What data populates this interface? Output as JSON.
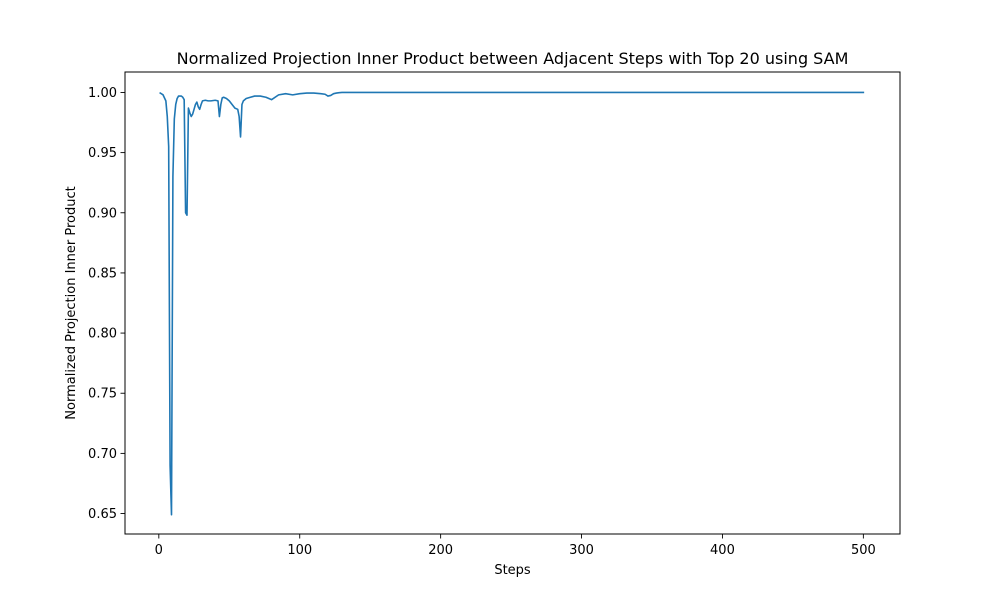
{
  "chart_data": {
    "type": "line",
    "title": "Normalized Projection Inner Product between Adjacent Steps with Top 20 using SAM",
    "xlabel": "Steps",
    "ylabel": "Normalized Projection Inner Product",
    "xlim": [
      -24,
      526
    ],
    "ylim": [
      0.633,
      1.017
    ],
    "xticks": [
      0,
      100,
      200,
      300,
      400,
      500
    ],
    "xtick_labels": [
      "0",
      "100",
      "200",
      "300",
      "400",
      "500"
    ],
    "yticks": [
      0.65,
      0.7,
      0.75,
      0.8,
      0.85,
      0.9,
      0.95,
      1.0
    ],
    "ytick_labels": [
      "0.65",
      "0.70",
      "0.75",
      "0.80",
      "0.85",
      "0.90",
      "0.95",
      "1.00"
    ],
    "grid": false,
    "series": [
      {
        "color": "#1f77b4",
        "x": [
          1,
          3,
          5,
          6,
          7,
          8,
          9,
          10,
          11,
          12,
          13,
          14,
          15,
          16,
          17,
          18,
          19,
          20,
          21,
          22,
          23,
          24,
          25,
          26,
          27,
          28,
          29,
          30,
          31,
          33,
          35,
          37,
          40,
          42,
          43,
          44,
          45,
          46,
          48,
          50,
          52,
          54,
          56,
          57,
          58,
          59,
          60,
          62,
          65,
          68,
          72,
          76,
          80,
          85,
          90,
          95,
          100,
          105,
          110,
          115,
          118,
          120,
          122,
          124,
          126,
          128,
          130,
          135,
          140,
          150,
          200,
          250,
          300,
          350,
          400,
          450,
          500
        ],
        "y": [
          0.9995,
          0.998,
          0.993,
          0.98,
          0.955,
          0.69,
          0.649,
          0.93,
          0.978,
          0.99,
          0.995,
          0.997,
          0.997,
          0.997,
          0.996,
          0.994,
          0.9,
          0.898,
          0.987,
          0.983,
          0.98,
          0.982,
          0.986,
          0.99,
          0.992,
          0.988,
          0.986,
          0.99,
          0.993,
          0.9935,
          0.993,
          0.993,
          0.9935,
          0.993,
          0.98,
          0.99,
          0.9955,
          0.996,
          0.995,
          0.993,
          0.99,
          0.987,
          0.986,
          0.98,
          0.963,
          0.99,
          0.993,
          0.995,
          0.996,
          0.997,
          0.997,
          0.996,
          0.994,
          0.998,
          0.999,
          0.998,
          0.999,
          0.9995,
          0.9995,
          0.999,
          0.9985,
          0.997,
          0.9975,
          0.999,
          0.9995,
          0.9998,
          1.0,
          1.0,
          1.0,
          1.0,
          1.0,
          1.0,
          1.0,
          1.0,
          1.0,
          1.0,
          1.0
        ]
      }
    ]
  }
}
